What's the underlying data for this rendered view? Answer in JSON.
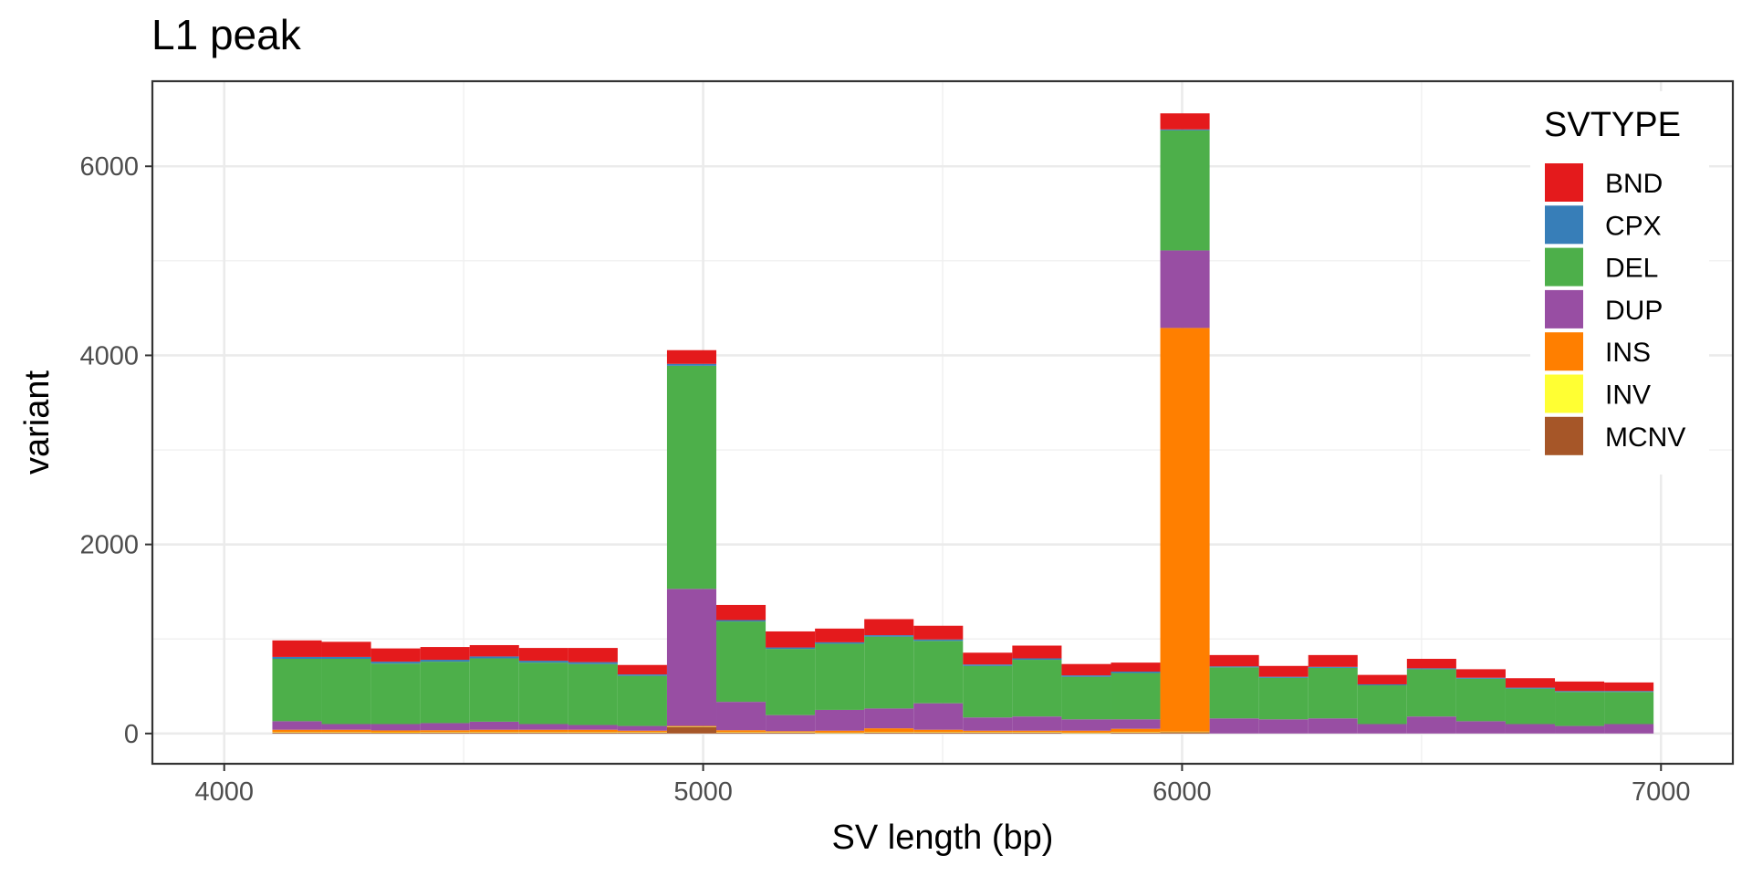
{
  "chart_data": {
    "type": "bar",
    "stacked": true,
    "title": "L1 peak",
    "xlabel": "SV length (bp)",
    "ylabel": "variant",
    "xlim": [
      3850,
      7150
    ],
    "ylim": [
      -320,
      6900
    ],
    "x_ticks": [
      4000,
      5000,
      6000,
      7000
    ],
    "x_tick_labels": [
      "4000",
      "5000",
      "6000",
      "7000"
    ],
    "y_ticks": [
      0,
      2000,
      4000,
      6000
    ],
    "y_tick_labels": [
      "0",
      "2000",
      "4000",
      "6000"
    ],
    "grid": true,
    "legend": {
      "title": "SVTYPE",
      "position": "top-right"
    },
    "bin_width": 103,
    "bins": [
      4152,
      4255,
      4358,
      4461,
      4564,
      4667,
      4770,
      4873,
      4976,
      5079,
      5182,
      5285,
      5388,
      5491,
      5594,
      5697,
      5800,
      5903,
      6006,
      6109,
      6212,
      6315,
      6418,
      6521,
      6624,
      6727,
      6830,
      6933
    ],
    "series": [
      {
        "name": "MCNV",
        "color": "#A65628",
        "values": [
          10,
          10,
          8,
          10,
          10,
          10,
          10,
          10,
          70,
          10,
          10,
          5,
          10,
          10,
          10,
          10,
          5,
          10,
          15,
          0,
          0,
          0,
          0,
          0,
          0,
          0,
          0,
          0
        ]
      },
      {
        "name": "INV",
        "color": "#FFFF33",
        "values": [
          5,
          5,
          5,
          5,
          5,
          5,
          5,
          5,
          5,
          5,
          5,
          5,
          5,
          5,
          5,
          5,
          5,
          5,
          5,
          0,
          0,
          0,
          0,
          0,
          0,
          0,
          0,
          0
        ]
      },
      {
        "name": "INS",
        "color": "#FF7F00",
        "values": [
          25,
          25,
          20,
          20,
          25,
          25,
          25,
          15,
          5,
          20,
          10,
          20,
          40,
          25,
          15,
          15,
          20,
          35,
          4270,
          0,
          0,
          0,
          0,
          0,
          0,
          0,
          0,
          0
        ]
      },
      {
        "name": "DUP",
        "color": "#984EA3",
        "values": [
          90,
          60,
          67,
          75,
          85,
          60,
          50,
          50,
          1450,
          300,
          170,
          220,
          210,
          280,
          140,
          150,
          120,
          100,
          820,
          160,
          150,
          160,
          100,
          180,
          130,
          100,
          80,
          100
        ]
      },
      {
        "name": "DEL",
        "color": "#4DAF4A",
        "values": [
          660,
          690,
          640,
          650,
          670,
          650,
          645,
          530,
          2360,
          850,
          700,
          700,
          760,
          660,
          545,
          600,
          450,
          490,
          1270,
          540,
          440,
          535,
          410,
          500,
          450,
          375,
          360,
          340
        ]
      },
      {
        "name": "CPX",
        "color": "#377EB8",
        "values": [
          20,
          20,
          20,
          20,
          20,
          20,
          20,
          15,
          20,
          15,
          15,
          15,
          15,
          15,
          15,
          15,
          15,
          15,
          10,
          10,
          10,
          10,
          10,
          10,
          10,
          10,
          10,
          10
        ]
      },
      {
        "name": "BND",
        "color": "#E41A1C",
        "values": [
          175,
          160,
          140,
          135,
          120,
          135,
          150,
          100,
          145,
          160,
          170,
          145,
          170,
          145,
          125,
          135,
          120,
          95,
          170,
          120,
          115,
          125,
          100,
          100,
          90,
          100,
          100,
          90
        ]
      }
    ]
  }
}
